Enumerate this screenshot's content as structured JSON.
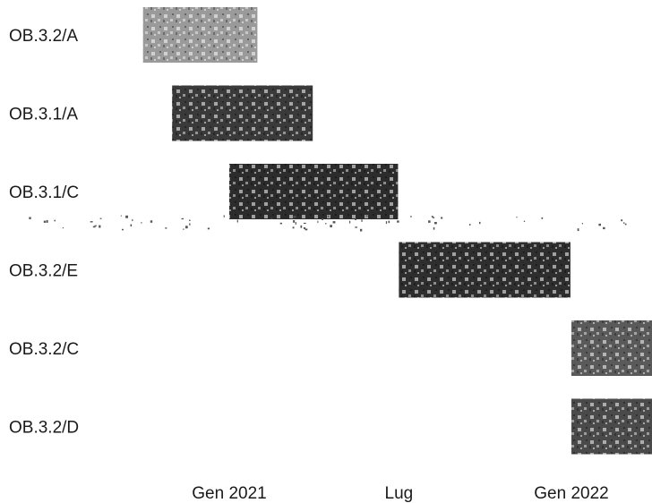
{
  "chart_data": {
    "type": "gantt",
    "title": "",
    "xlabel": "",
    "ylabel": "",
    "tasks": [
      {
        "name": "OB.3.2/A",
        "start": "2020-10-01",
        "end": "2021-01-31",
        "color": "#9a9a9a"
      },
      {
        "name": "OB.3.1/A",
        "start": "2020-11-01",
        "end": "2021-03-31",
        "color": "#3a3a3a"
      },
      {
        "name": "OB.3.1/C",
        "start": "2021-01-01",
        "end": "2021-06-30",
        "color": "#2c2c2c"
      },
      {
        "name": "OB.3.2/E",
        "start": "2021-07-01",
        "end": "2021-12-31",
        "color": "#2e2e2e"
      },
      {
        "name": "OB.3.2/C",
        "start": "2022-01-01",
        "end": "2022-06-30",
        "color": "#5a5a5a"
      },
      {
        "name": "OB.3.2/D",
        "start": "2022-01-01",
        "end": "2022-06-30",
        "color": "#4a4a4a"
      }
    ],
    "x_ticks": [
      {
        "label": "Gen 2021",
        "date": "2021-01-01"
      },
      {
        "label": "Lug",
        "date": "2021-07-01"
      },
      {
        "label": "Gen 2022",
        "date": "2022-01-01"
      }
    ],
    "grid": false,
    "legend": "none"
  }
}
